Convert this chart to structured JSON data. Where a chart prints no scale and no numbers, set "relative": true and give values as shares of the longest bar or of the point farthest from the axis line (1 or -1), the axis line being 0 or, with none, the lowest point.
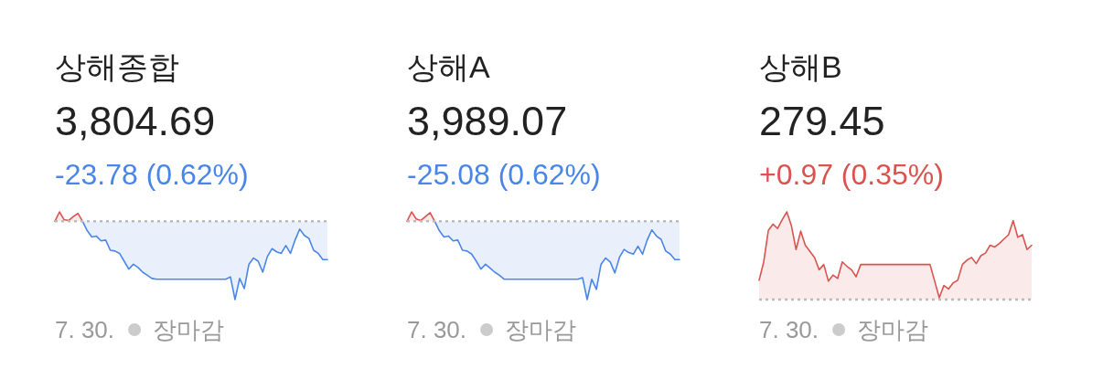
{
  "chart_data": [
    {
      "type": "area",
      "title": "상해종합",
      "subtitle": "3,804.69",
      "annotations": [
        "-23.78 (0.62%)",
        "7. 30.",
        "장마감"
      ],
      "relative": true,
      "categories": [
        null,
        null,
        null,
        null,
        null,
        null,
        null,
        null,
        null,
        null,
        null,
        null,
        null,
        null,
        null,
        null,
        null,
        null,
        null,
        null,
        null,
        null,
        null,
        null,
        null,
        null,
        null,
        null,
        null,
        null,
        null,
        null,
        null,
        null,
        null,
        null,
        null,
        null,
        null,
        null,
        null,
        null,
        null,
        null,
        null,
        null,
        null,
        null,
        null,
        null,
        null,
        null,
        null,
        null,
        null,
        null,
        null,
        null,
        null,
        null
      ],
      "series": [
        {
          "color": "#4a86e8",
          "values": [
            null,
            null,
            null,
            null,
            null,
            null,
            0,
            -0.12,
            -0.2,
            -0.19,
            -0.25,
            -0.24,
            -0.37,
            -0.38,
            -0.41,
            -0.51,
            -0.61,
            -0.55,
            -0.59,
            -0.65,
            -0.69,
            -0.73,
            -0.74,
            -0.74,
            -0.74,
            -0.74,
            -0.74,
            -0.74,
            -0.74,
            -0.74,
            -0.74,
            -0.74,
            -0.74,
            -0.74,
            -0.74,
            -0.74,
            -0.74,
            -0.74,
            -0.71,
            -1,
            -0.73,
            -0.86,
            -0.55,
            -0.47,
            -0.51,
            -0.65,
            -0.45,
            -0.35,
            -0.39,
            -0.41,
            -0.31,
            -0.41,
            -0.24,
            -0.1,
            -0.18,
            -0.22,
            -0.37,
            -0.41,
            -0.49,
            -0.49
          ]
        },
        {
          "color": "#d9534f",
          "values": [
            0,
            0.12,
            0.02,
            0.01,
            0.06,
            0.1,
            0,
            null,
            null,
            null,
            null,
            null,
            null,
            null,
            null,
            null,
            null,
            null,
            null,
            null,
            null,
            null,
            null,
            null,
            null,
            null,
            null,
            null,
            null,
            null,
            null,
            null,
            null,
            null,
            null,
            null,
            null,
            null,
            null,
            null,
            null,
            null,
            null,
            null,
            null,
            null,
            null,
            null,
            null,
            null,
            null,
            null,
            null,
            null,
            null,
            null,
            null,
            null,
            null,
            null
          ]
        }
      ],
      "ref_lines": [
        {
          "axis": "y",
          "value": 0,
          "color": "#bbbbbb",
          "line_style": "dotted"
        }
      ]
    },
    {
      "type": "area",
      "title": "상해A",
      "subtitle": "3,989.07",
      "annotations": [
        "-25.08 (0.62%)",
        "7. 30.",
        "장마감"
      ],
      "relative": true,
      "categories": [
        null,
        null,
        null,
        null,
        null,
        null,
        null,
        null,
        null,
        null,
        null,
        null,
        null,
        null,
        null,
        null,
        null,
        null,
        null,
        null,
        null,
        null,
        null,
        null,
        null,
        null,
        null,
        null,
        null,
        null,
        null,
        null,
        null,
        null,
        null,
        null,
        null,
        null,
        null,
        null,
        null,
        null,
        null,
        null,
        null,
        null,
        null,
        null,
        null,
        null,
        null,
        null,
        null,
        null,
        null,
        null,
        null,
        null,
        null,
        null
      ],
      "series": [
        {
          "color": "#4a86e8",
          "values": [
            null,
            null,
            null,
            null,
            null,
            null,
            0,
            -0.12,
            -0.2,
            -0.19,
            -0.25,
            -0.24,
            -0.37,
            -0.38,
            -0.42,
            -0.51,
            -0.61,
            -0.55,
            -0.6,
            -0.65,
            -0.69,
            -0.74,
            -0.74,
            -0.74,
            -0.74,
            -0.74,
            -0.74,
            -0.74,
            -0.74,
            -0.74,
            -0.74,
            -0.74,
            -0.74,
            -0.74,
            -0.74,
            -0.74,
            -0.74,
            -0.74,
            -0.72,
            -1,
            -0.74,
            -0.87,
            -0.55,
            -0.47,
            -0.52,
            -0.66,
            -0.46,
            -0.36,
            -0.4,
            -0.42,
            -0.32,
            -0.42,
            -0.24,
            -0.11,
            -0.19,
            -0.23,
            -0.38,
            -0.42,
            -0.49,
            -0.49
          ]
        },
        {
          "color": "#d9534f",
          "values": [
            0,
            0.12,
            0.03,
            0.01,
            0.06,
            0.11,
            0,
            null,
            null,
            null,
            null,
            null,
            null,
            null,
            null,
            null,
            null,
            null,
            null,
            null,
            null,
            null,
            null,
            null,
            null,
            null,
            null,
            null,
            null,
            null,
            null,
            null,
            null,
            null,
            null,
            null,
            null,
            null,
            null,
            null,
            null,
            null,
            null,
            null,
            null,
            null,
            null,
            null,
            null,
            null,
            null,
            null,
            null,
            null,
            null,
            null,
            null,
            null,
            null,
            null
          ]
        }
      ],
      "ref_lines": [
        {
          "axis": "y",
          "value": 0,
          "color": "#bbbbbb",
          "line_style": "dotted"
        }
      ]
    },
    {
      "type": "area",
      "title": "상해B",
      "subtitle": "279.45",
      "annotations": [
        "+0.97 (0.35%)",
        "7. 30.",
        "장마감"
      ],
      "relative": true,
      "categories": [
        null,
        null,
        null,
        null,
        null,
        null,
        null,
        null,
        null,
        null,
        null,
        null,
        null,
        null,
        null,
        null,
        null,
        null,
        null,
        null,
        null,
        null,
        null,
        null,
        null,
        null,
        null,
        null,
        null,
        null,
        null,
        null,
        null,
        null,
        null,
        null,
        null,
        null,
        null,
        null,
        null,
        null,
        null,
        null,
        null,
        null,
        null,
        null,
        null,
        null,
        null,
        null,
        null,
        null,
        null,
        null,
        null,
        null,
        null,
        null
      ],
      "series": [
        {
          "color": "#d9534f",
          "values": [
            0.22,
            0.43,
            0.79,
            0.86,
            0.81,
            0.91,
            1,
            0.84,
            0.57,
            0.78,
            0.62,
            0.55,
            0.48,
            0.34,
            0.4,
            0.21,
            0.28,
            0.24,
            0.43,
            0.38,
            0.34,
            0.26,
            0.4,
            0.4,
            0.4,
            0.4,
            0.4,
            0.4,
            0.4,
            0.4,
            0.4,
            0.4,
            0.4,
            0.4,
            0.4,
            0.4,
            0.4,
            0.4,
            0.21,
            0.02,
            0.16,
            0.12,
            0.19,
            0.22,
            0.4,
            0.45,
            0.48,
            0.41,
            0.5,
            0.53,
            0.62,
            0.6,
            0.64,
            0.69,
            0.74,
            0.9,
            0.71,
            0.74,
            0.57,
            0.62
          ]
        }
      ],
      "ref_lines": [
        {
          "axis": "y",
          "value": 0,
          "color": "#bbbbbb",
          "line_style": "dotted"
        }
      ]
    }
  ]
}
